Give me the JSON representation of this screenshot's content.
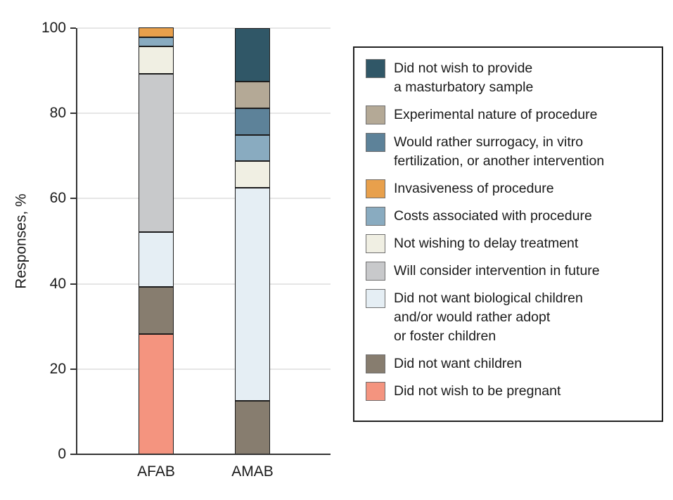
{
  "figure": {
    "background": "#ffffff",
    "axis_color": "#333333",
    "gridline_color": "#e6e6e6",
    "bar_border_color": "#1c1c1c",
    "text_color": "#1a1a1a"
  },
  "chart_data": {
    "type": "bar",
    "stacked": true,
    "title": "",
    "xlabel": "",
    "ylabel": "Responses, %",
    "ylim": [
      0,
      100
    ],
    "yticks": [
      0,
      20,
      40,
      60,
      80,
      100
    ],
    "grid": "horizontal",
    "legend_position": "right",
    "categories": [
      "AFAB",
      "AMAB"
    ],
    "series": [
      {
        "name": "Did not wish to be pregnant",
        "color": "#F4947F",
        "values": [
          28.3,
          0
        ]
      },
      {
        "name": "Did not want children",
        "color": "#877D6F",
        "values": [
          10.9,
          12.5
        ]
      },
      {
        "name": "Did not want biological children and/or would rather adopt or foster children",
        "color": "#E5EEF4",
        "values": [
          13.0,
          50.0
        ]
      },
      {
        "name": "Will consider intervention in future",
        "color": "#C8C9CB",
        "values": [
          37.0,
          0
        ]
      },
      {
        "name": "Not wishing to delay treatment",
        "color": "#F0EFE3",
        "values": [
          6.5,
          6.25
        ]
      },
      {
        "name": "Costs associated with procedure",
        "color": "#89ABC0",
        "values": [
          2.2,
          6.25
        ]
      },
      {
        "name": "Invasiveness of procedure",
        "color": "#E8A04C",
        "values": [
          2.2,
          0
        ]
      },
      {
        "name": "Would rather surrogacy, in vitro fertilization, or another intervention",
        "color": "#5D8299",
        "values": [
          0,
          6.25
        ]
      },
      {
        "name": "Experimental nature of procedure",
        "color": "#B4A996",
        "values": [
          0,
          6.25
        ]
      },
      {
        "name": "Did not wish to provide a masturbatory sample",
        "color": "#305767",
        "values": [
          0,
          12.5
        ]
      }
    ],
    "legend_items": [
      {
        "color": "#305767",
        "lines": [
          "Did not wish to provide",
          "a masturbatory sample"
        ]
      },
      {
        "color": "#B4A996",
        "lines": [
          "Experimental nature of procedure"
        ]
      },
      {
        "color": "#5D8299",
        "lines": [
          "Would rather surrogacy, in vitro",
          "fertilization, or another intervention"
        ]
      },
      {
        "color": "#E8A04C",
        "lines": [
          "Invasiveness of procedure"
        ]
      },
      {
        "color": "#89ABC0",
        "lines": [
          "Costs associated with procedure"
        ]
      },
      {
        "color": "#F0EFE3",
        "lines": [
          "Not wishing to delay treatment"
        ]
      },
      {
        "color": "#C8C9CB",
        "lines": [
          "Will consider intervention in future"
        ]
      },
      {
        "color": "#E5EEF4",
        "lines": [
          "Did not want biological children",
          "and/or would rather adopt",
          "or foster children"
        ]
      },
      {
        "color": "#877D6F",
        "lines": [
          "Did not want children"
        ]
      },
      {
        "color": "#F4947F",
        "lines": [
          "Did not wish to be pregnant"
        ]
      }
    ]
  }
}
